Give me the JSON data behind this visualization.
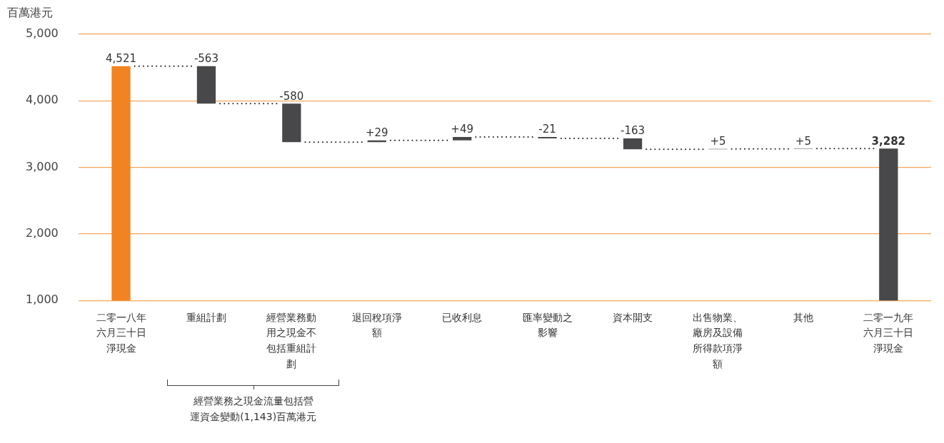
{
  "chart_data": {
    "type": "bar",
    "ylabel": "百萬港元",
    "categories": [
      "二零一八年六月三十日淨現金",
      "重組計劃",
      "經營業務動用之現金不包括重組計劃",
      "退回稅項淨額",
      "已收利息",
      "匯率變動之影響",
      "資本開支",
      "出售物業、廠房及設備所得款項淨額",
      "其他",
      "二零一九年六月三十日淨現金"
    ],
    "values": [
      4521,
      -563,
      -580,
      29,
      49,
      -21,
      -163,
      5,
      5,
      3282
    ],
    "base": [
      null,
      4521,
      3958,
      3378,
      3407,
      3456,
      3435,
      3272,
      3277,
      null
    ],
    "colors": [
      "#f28322",
      "#48484a",
      "#48484a",
      "#48484a",
      "#48484a",
      "#48484a",
      "#48484a",
      "#48484a",
      "#48484a",
      "#48484a"
    ],
    "value_labels": [
      "4,521",
      "-563",
      "-580",
      "+29",
      "+49",
      "-21",
      "-163",
      "+5",
      "+5",
      "3,282"
    ],
    "ylim": [
      1000,
      5000
    ],
    "yticks": [
      {
        "value": 1000,
        "label": "1,000"
      },
      {
        "value": 2000,
        "label": "2,000"
      },
      {
        "value": 3000,
        "label": "3,000"
      },
      {
        "value": 4000,
        "label": "4,000"
      },
      {
        "value": 5000,
        "label": "5,000"
      }
    ],
    "grid": "y",
    "annotations": [
      "經營業務之現金流量包括營運資金變動(1,143)百萬港元"
    ]
  }
}
